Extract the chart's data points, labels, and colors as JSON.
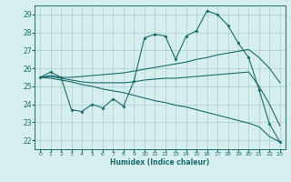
{
  "xlabel": "Humidex (Indice chaleur)",
  "ylabel": "",
  "bg_color": "#d6eeee",
  "grid_color": "#aacccc",
  "line_color": "#1a6b6b",
  "xlim": [
    -0.5,
    23.5
  ],
  "ylim": [
    21.5,
    29.5
  ],
  "xticks": [
    0,
    1,
    2,
    3,
    4,
    5,
    6,
    7,
    8,
    9,
    10,
    11,
    12,
    13,
    14,
    15,
    16,
    17,
    18,
    19,
    20,
    21,
    22,
    23
  ],
  "yticks": [
    22,
    23,
    24,
    25,
    26,
    27,
    28,
    29
  ],
  "series1_x": [
    0,
    1,
    2,
    3,
    4,
    5,
    6,
    7,
    8,
    9,
    10,
    11,
    12,
    13,
    14,
    15,
    16,
    17,
    18,
    19,
    20,
    21,
    22,
    23
  ],
  "series1_y": [
    25.5,
    25.8,
    25.5,
    23.7,
    23.6,
    24.0,
    23.8,
    24.3,
    23.9,
    25.3,
    27.7,
    27.9,
    27.8,
    26.5,
    27.8,
    28.1,
    29.2,
    29.0,
    28.4,
    27.4,
    26.6,
    24.8,
    22.9,
    21.9
  ],
  "series2_x": [
    0,
    1,
    2,
    3,
    4,
    5,
    6,
    7,
    8,
    9,
    10,
    11,
    12,
    13,
    14,
    15,
    16,
    17,
    18,
    19,
    20,
    21,
    22,
    23
  ],
  "series2_y": [
    25.5,
    25.6,
    25.5,
    25.5,
    25.55,
    25.6,
    25.65,
    25.7,
    25.75,
    25.85,
    25.95,
    26.05,
    26.15,
    26.25,
    26.35,
    26.5,
    26.6,
    26.75,
    26.85,
    26.95,
    27.05,
    26.6,
    26.0,
    25.2
  ],
  "series3_x": [
    0,
    1,
    2,
    3,
    4,
    5,
    6,
    7,
    8,
    9,
    10,
    11,
    12,
    13,
    14,
    15,
    16,
    17,
    18,
    19,
    20,
    21,
    22,
    23
  ],
  "series3_y": [
    25.5,
    25.55,
    25.45,
    25.35,
    25.25,
    25.2,
    25.2,
    25.2,
    25.2,
    25.25,
    25.35,
    25.4,
    25.45,
    25.45,
    25.5,
    25.55,
    25.6,
    25.65,
    25.7,
    25.75,
    25.8,
    25.0,
    24.0,
    22.8
  ],
  "series4_x": [
    0,
    1,
    2,
    3,
    4,
    5,
    6,
    7,
    8,
    9,
    10,
    11,
    12,
    13,
    14,
    15,
    16,
    17,
    18,
    19,
    20,
    21,
    22,
    23
  ],
  "series4_y": [
    25.5,
    25.45,
    25.35,
    25.25,
    25.1,
    25.0,
    24.85,
    24.75,
    24.65,
    24.5,
    24.35,
    24.2,
    24.1,
    23.95,
    23.85,
    23.7,
    23.55,
    23.4,
    23.25,
    23.1,
    22.95,
    22.75,
    22.2,
    21.9
  ]
}
